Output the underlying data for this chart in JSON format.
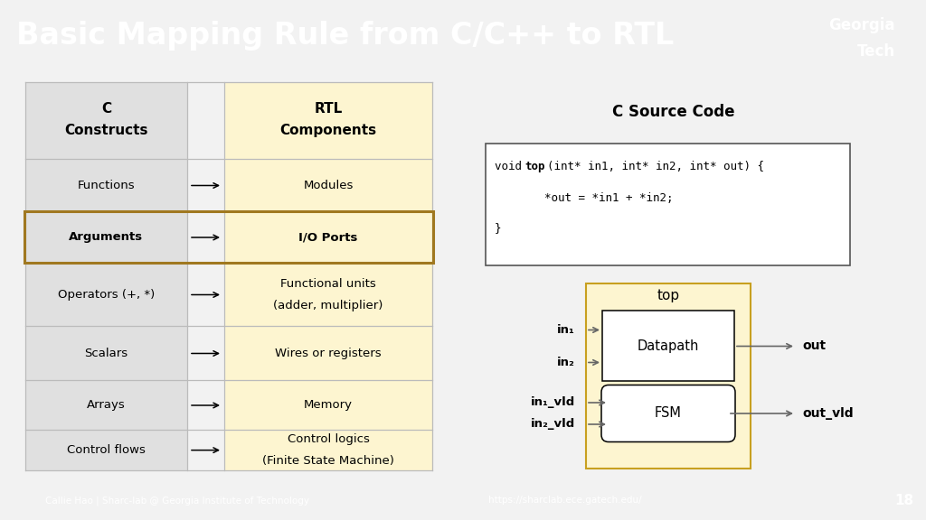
{
  "title": "Basic Mapping Rule from C/C++ to RTL",
  "title_bg": "#1a3a5c",
  "title_color": "#ffffff",
  "content_bg": "#f2f2f2",
  "footer_bg": "#1a3a5c",
  "footer_text_left": "Callie Hao | Sharc-lab @ Georgia Institute of Technology",
  "footer_text_right": "https://sharclab.ece.gatech.edu/",
  "footer_page": "18",
  "table_left_bg": "#e0e0e0",
  "table_right_bg": "#fdf5d0",
  "table_highlight_border": "#a07820",
  "table_rows": [
    [
      "Functions",
      "Modules"
    ],
    [
      "Arguments",
      "I/O Ports"
    ],
    [
      "Operators (+, *)",
      "Functional units\n(adder, multiplier)"
    ],
    [
      "Scalars",
      "Wires or registers"
    ],
    [
      "Arrays",
      "Memory"
    ],
    [
      "Control flows",
      "Control logics\n(Finite State Machine)"
    ]
  ],
  "highlight_row": 1,
  "code_title": "C Source Code",
  "code_line1_pre": "void ",
  "code_line1_bold": "top",
  "code_line1_post": "(int* in1, int* in2, int* out) {",
  "code_line2": "    *out = *in1 + *in2;",
  "code_line3": "}",
  "diagram_title": "top",
  "diagram_bg": "#fdf5d0",
  "diagram_border": "#c8a020",
  "datapath_label": "Datapath",
  "fsm_label": "FSM",
  "inputs_dp": [
    "in₁",
    "in₂"
  ],
  "inputs_fsm": [
    "in₁_vld",
    "in₂_vld"
  ],
  "output_dp": "out",
  "output_fsm": "out_vld",
  "arrow_color": "#666666"
}
